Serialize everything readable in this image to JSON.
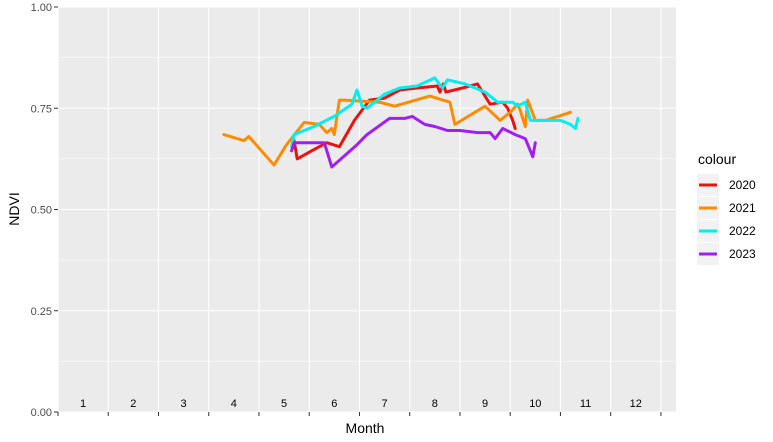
{
  "chart_data": {
    "type": "line",
    "xlabel": "Month",
    "ylabel": "NDVI",
    "xlim": [
      0,
      12.3
    ],
    "ylim": [
      0,
      1
    ],
    "y_ticks": [
      "0.00",
      "0.25",
      "0.50",
      "0.75",
      "1.00"
    ],
    "y_tick_values": [
      0,
      0.25,
      0.5,
      0.75,
      1.0
    ],
    "month_labels": [
      "1",
      "2",
      "3",
      "4",
      "5",
      "6",
      "7",
      "8",
      "9",
      "10",
      "11",
      "12"
    ],
    "grid": true,
    "background": "#ebebeb",
    "legend": {
      "title": "colour",
      "position": "right"
    },
    "series": [
      {
        "name": "2020",
        "color": "#ee1111",
        "points": [
          [
            4.7,
            0.67
          ],
          [
            4.76,
            0.625
          ],
          [
            5.05,
            0.645
          ],
          [
            5.35,
            0.665
          ],
          [
            5.6,
            0.655
          ],
          [
            5.9,
            0.72
          ],
          [
            6.2,
            0.77
          ],
          [
            6.5,
            0.775
          ],
          [
            6.8,
            0.795
          ],
          [
            7.15,
            0.8
          ],
          [
            7.55,
            0.805
          ],
          [
            7.6,
            0.79
          ],
          [
            7.67,
            0.81
          ],
          [
            7.72,
            0.79
          ],
          [
            8.05,
            0.8
          ],
          [
            8.35,
            0.81
          ],
          [
            8.6,
            0.76
          ],
          [
            8.85,
            0.765
          ],
          [
            8.95,
            0.75
          ],
          [
            9.05,
            0.72
          ],
          [
            9.1,
            0.7
          ]
        ]
      },
      {
        "name": "2021",
        "color": "#ff8c00",
        "points": [
          [
            3.3,
            0.685
          ],
          [
            3.7,
            0.67
          ],
          [
            3.8,
            0.68
          ],
          [
            4.3,
            0.61
          ],
          [
            4.55,
            0.66
          ],
          [
            4.9,
            0.715
          ],
          [
            5.2,
            0.71
          ],
          [
            5.35,
            0.69
          ],
          [
            5.45,
            0.7
          ],
          [
            5.5,
            0.685
          ],
          [
            5.6,
            0.77
          ],
          [
            5.7,
            0.77
          ],
          [
            6.4,
            0.765
          ],
          [
            6.7,
            0.755
          ],
          [
            7.4,
            0.78
          ],
          [
            7.8,
            0.765
          ],
          [
            7.9,
            0.71
          ],
          [
            8.5,
            0.755
          ],
          [
            8.8,
            0.72
          ],
          [
            9.0,
            0.74
          ],
          [
            9.15,
            0.76
          ],
          [
            9.2,
            0.745
          ],
          [
            9.3,
            0.705
          ],
          [
            9.35,
            0.77
          ],
          [
            9.5,
            0.72
          ],
          [
            9.7,
            0.72
          ],
          [
            10.2,
            0.74
          ]
        ]
      },
      {
        "name": "2022",
        "color": "#00eeee",
        "points": [
          [
            4.65,
            0.655
          ],
          [
            4.7,
            0.685
          ],
          [
            5.1,
            0.705
          ],
          [
            5.5,
            0.73
          ],
          [
            5.85,
            0.76
          ],
          [
            5.95,
            0.795
          ],
          [
            6.05,
            0.755
          ],
          [
            6.15,
            0.75
          ],
          [
            6.5,
            0.785
          ],
          [
            6.8,
            0.8
          ],
          [
            7.15,
            0.805
          ],
          [
            7.5,
            0.825
          ],
          [
            7.65,
            0.8
          ],
          [
            7.75,
            0.82
          ],
          [
            8.1,
            0.81
          ],
          [
            8.5,
            0.79
          ],
          [
            8.75,
            0.765
          ],
          [
            9.05,
            0.765
          ],
          [
            9.15,
            0.755
          ],
          [
            9.3,
            0.765
          ],
          [
            9.4,
            0.72
          ],
          [
            10.0,
            0.72
          ],
          [
            10.2,
            0.71
          ],
          [
            10.3,
            0.7
          ],
          [
            10.35,
            0.725
          ]
        ]
      },
      {
        "name": "2023",
        "color": "#a020f0",
        "points": [
          [
            4.65,
            0.645
          ],
          [
            4.7,
            0.665
          ],
          [
            5.0,
            0.665
          ],
          [
            5.3,
            0.665
          ],
          [
            5.45,
            0.605
          ],
          [
            5.95,
            0.66
          ],
          [
            6.15,
            0.685
          ],
          [
            6.6,
            0.725
          ],
          [
            6.9,
            0.725
          ],
          [
            7.05,
            0.73
          ],
          [
            7.3,
            0.71
          ],
          [
            7.5,
            0.705
          ],
          [
            7.75,
            0.695
          ],
          [
            8.0,
            0.695
          ],
          [
            8.35,
            0.69
          ],
          [
            8.6,
            0.69
          ],
          [
            8.7,
            0.675
          ],
          [
            8.85,
            0.7
          ],
          [
            9.1,
            0.685
          ],
          [
            9.3,
            0.675
          ],
          [
            9.45,
            0.63
          ],
          [
            9.5,
            0.665
          ]
        ]
      }
    ]
  }
}
